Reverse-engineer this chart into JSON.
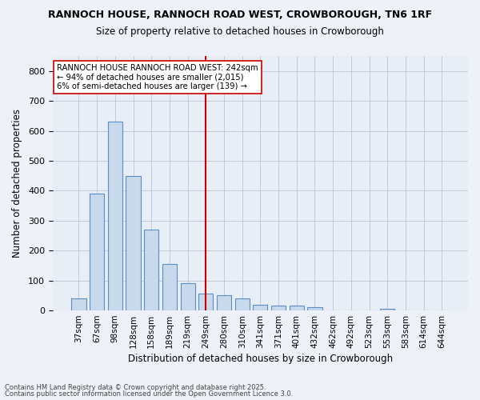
{
  "title": "RANNOCH HOUSE, RANNOCH ROAD WEST, CROWBOROUGH, TN6 1RF",
  "subtitle": "Size of property relative to detached houses in Crowborough",
  "xlabel": "Distribution of detached houses by size in Crowborough",
  "ylabel": "Number of detached properties",
  "bins": [
    "37sqm",
    "67sqm",
    "98sqm",
    "128sqm",
    "158sqm",
    "189sqm",
    "219sqm",
    "249sqm",
    "280sqm",
    "310sqm",
    "341sqm",
    "371sqm",
    "401sqm",
    "432sqm",
    "462sqm",
    "492sqm",
    "523sqm",
    "553sqm",
    "583sqm",
    "614sqm",
    "644sqm"
  ],
  "values": [
    40,
    390,
    630,
    450,
    270,
    155,
    90,
    55,
    50,
    40,
    20,
    15,
    15,
    10,
    0,
    0,
    0,
    5,
    0,
    0,
    0
  ],
  "bar_color": "#c8d9ec",
  "bar_edge_color": "#5b8cc8",
  "vline_x": 7,
  "vline_color": "#cc0000",
  "annotation_line0": "RANNOCH HOUSE RANNOCH ROAD WEST: 242sqm",
  "annotation_line1": "← 94% of detached houses are smaller (2,015)",
  "annotation_line2": "6% of semi-detached houses are larger (139) →",
  "annotation_box_color": "#ffffff",
  "annotation_border_color": "#cc0000",
  "bg_color": "#e8eef6",
  "fig_bg_color": "#eef2f8",
  "ylim": [
    0,
    850
  ],
  "yticks": [
    0,
    100,
    200,
    300,
    400,
    500,
    600,
    700,
    800
  ],
  "footer1": "Contains HM Land Registry data © Crown copyright and database right 2025.",
  "footer2": "Contains public sector information licensed under the Open Government Licence 3.0."
}
